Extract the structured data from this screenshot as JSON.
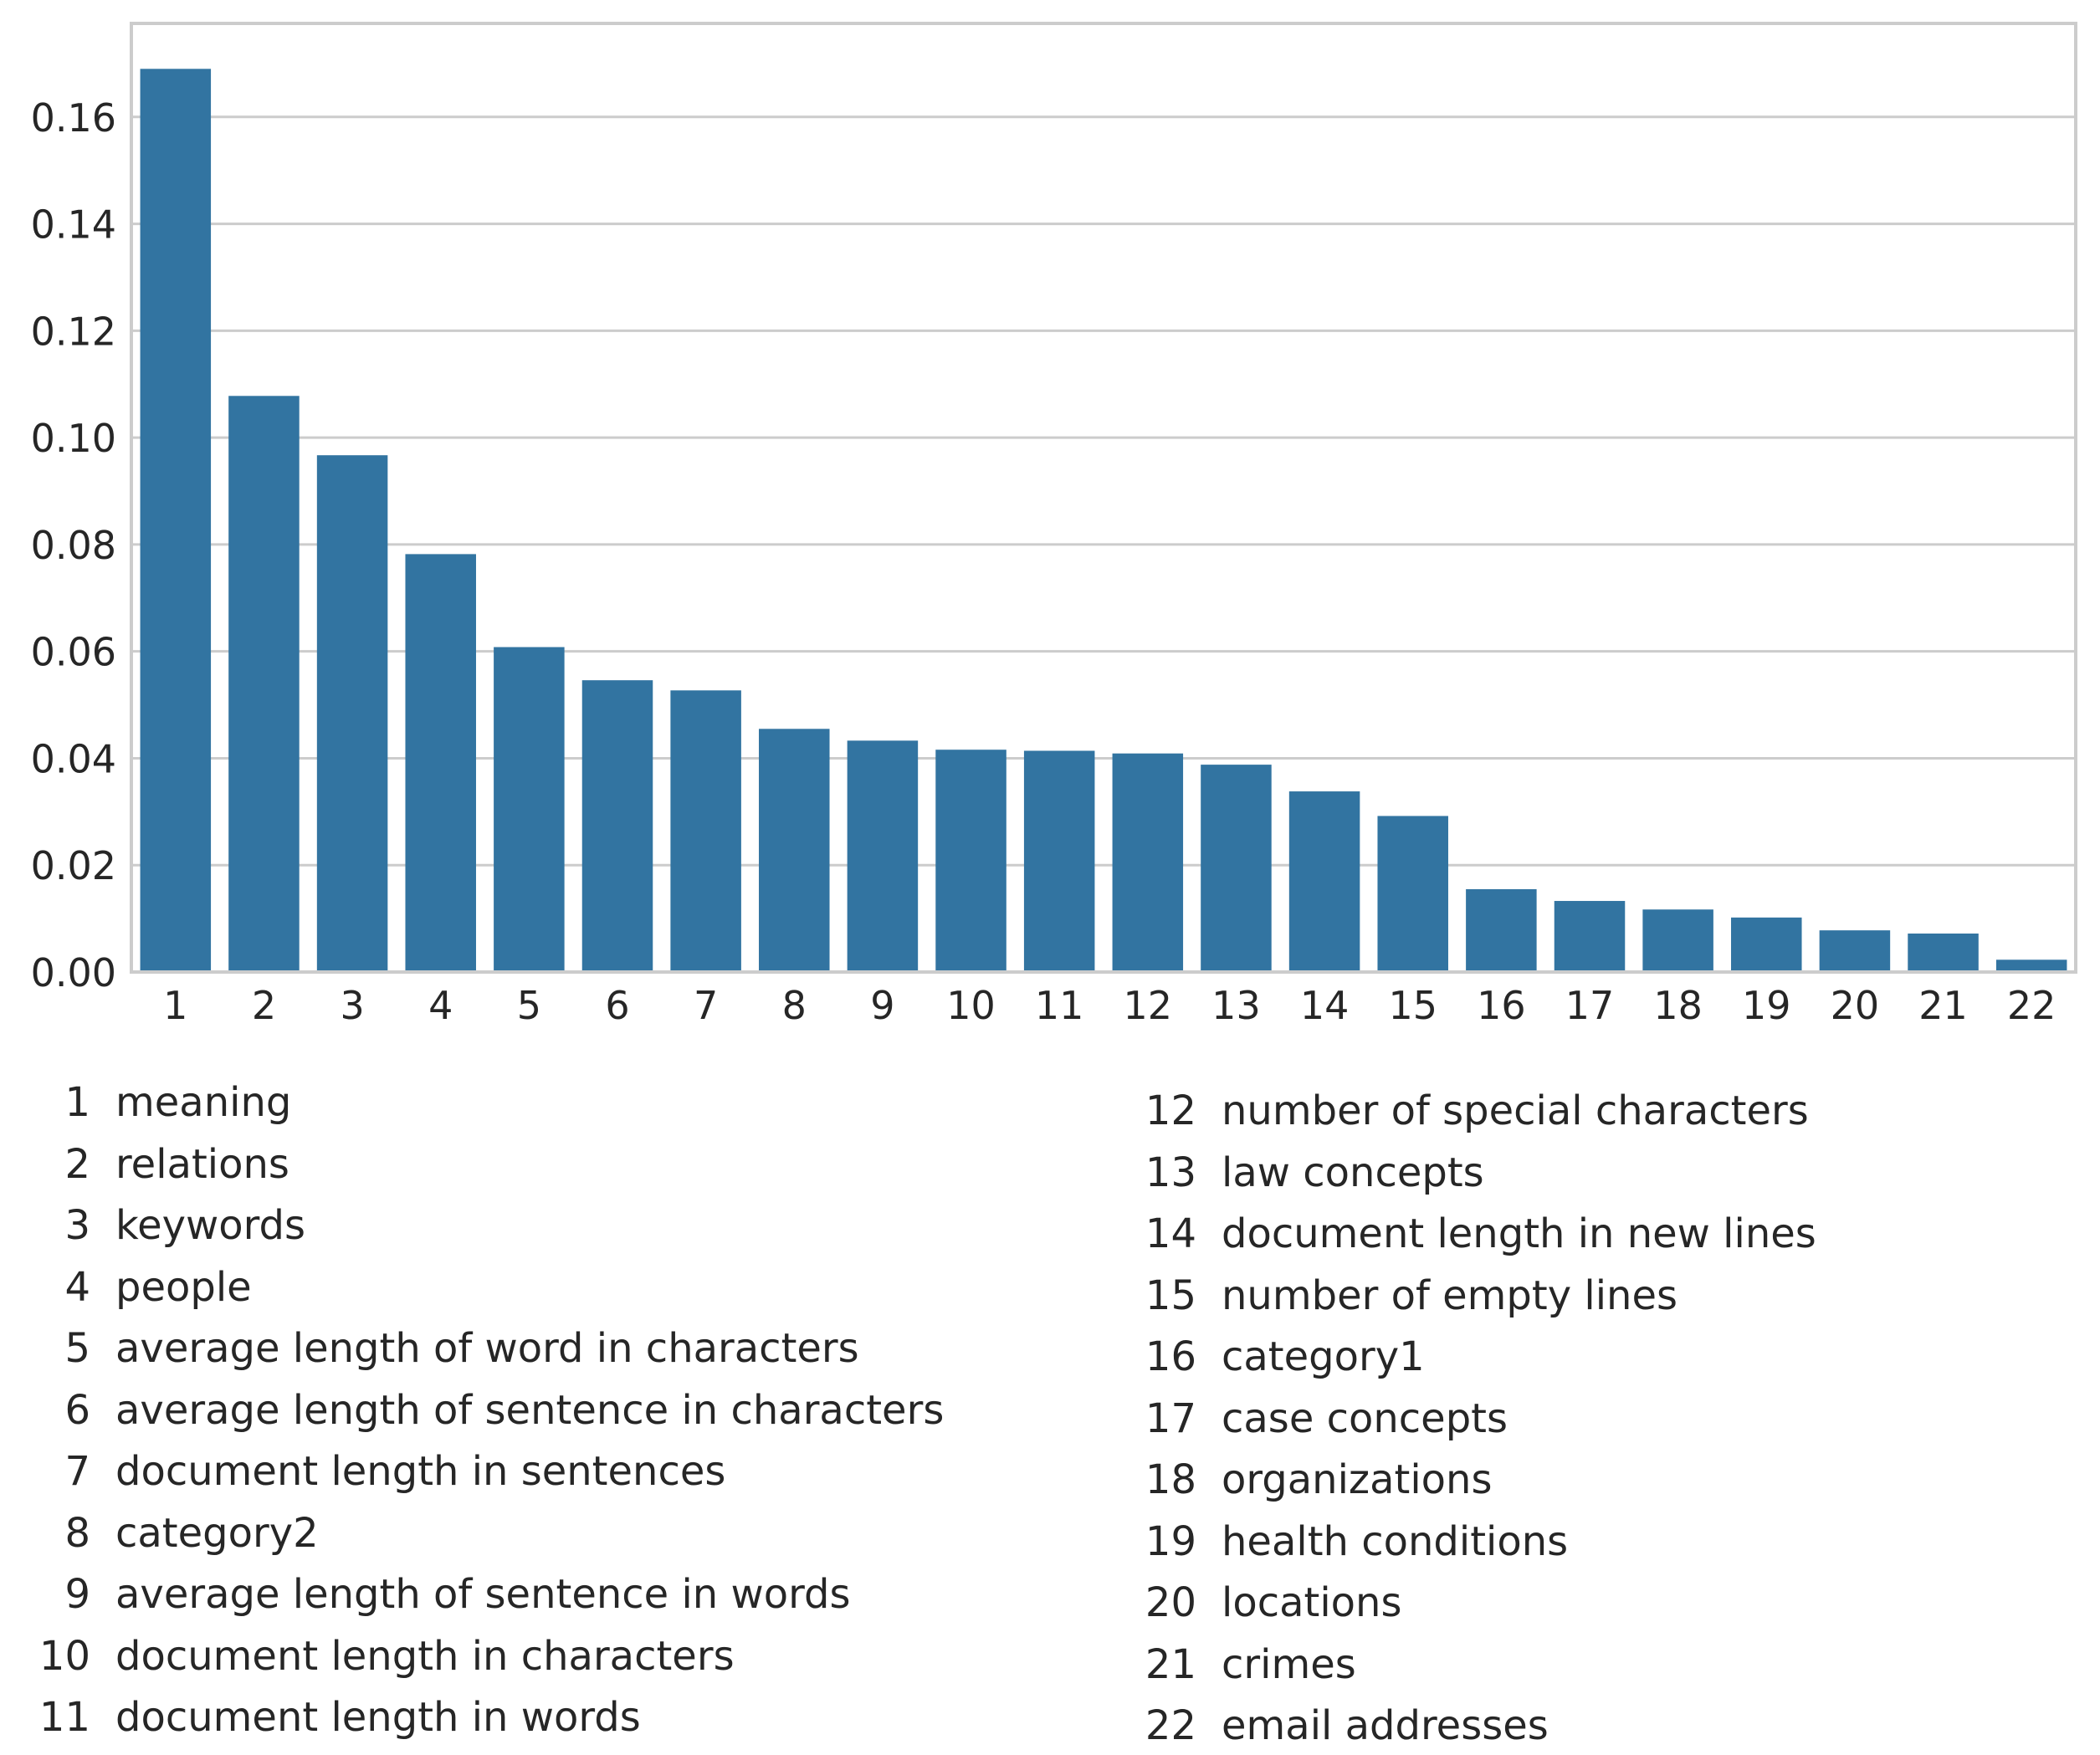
{
  "chart_data": {
    "type": "bar",
    "title": "",
    "xlabel": "",
    "ylabel": "",
    "categories": [
      "1",
      "2",
      "3",
      "4",
      "5",
      "6",
      "7",
      "8",
      "9",
      "10",
      "11",
      "12",
      "13",
      "14",
      "15",
      "16",
      "17",
      "18",
      "19",
      "20",
      "21",
      "22"
    ],
    "values": [
      0.169,
      0.1078,
      0.0967,
      0.0782,
      0.0608,
      0.0546,
      0.0527,
      0.0455,
      0.0433,
      0.0416,
      0.0414,
      0.0409,
      0.0388,
      0.0338,
      0.0292,
      0.0155,
      0.0133,
      0.0117,
      0.0102,
      0.0078,
      0.0072,
      0.0023
    ],
    "ylim": [
      0,
      0.1775
    ],
    "yticks": [
      "0.00",
      "0.02",
      "0.04",
      "0.06",
      "0.08",
      "0.10",
      "0.12",
      "0.14",
      "0.16"
    ],
    "ytick_values": [
      0,
      0.02,
      0.04,
      0.06,
      0.08,
      0.1,
      0.12,
      0.14,
      0.16
    ],
    "grid": "horizontal",
    "bar_color": "#3274a1",
    "legend": [
      {
        "num": "1",
        "label": "meaning"
      },
      {
        "num": "2",
        "label": "relations"
      },
      {
        "num": "3",
        "label": "keywords"
      },
      {
        "num": "4",
        "label": "people"
      },
      {
        "num": "5",
        "label": "average length of word in characters"
      },
      {
        "num": "6",
        "label": "average length of sentence in characters"
      },
      {
        "num": "7",
        "label": "document length in sentences"
      },
      {
        "num": "8",
        "label": "category2"
      },
      {
        "num": "9",
        "label": "average length of sentence in words"
      },
      {
        "num": "10",
        "label": "document length in characters"
      },
      {
        "num": "11",
        "label": "document length in words"
      },
      {
        "num": "12",
        "label": "number of special characters"
      },
      {
        "num": "13",
        "label": "law concepts"
      },
      {
        "num": "14",
        "label": "document length in new lines"
      },
      {
        "num": "15",
        "label": "number of empty lines"
      },
      {
        "num": "16",
        "label": "category1"
      },
      {
        "num": "17",
        "label": "case concepts"
      },
      {
        "num": "18",
        "label": "organizations"
      },
      {
        "num": "19",
        "label": "health conditions"
      },
      {
        "num": "20",
        "label": "locations"
      },
      {
        "num": "21",
        "label": "crimes"
      },
      {
        "num": "22",
        "label": "email addresses"
      }
    ]
  }
}
